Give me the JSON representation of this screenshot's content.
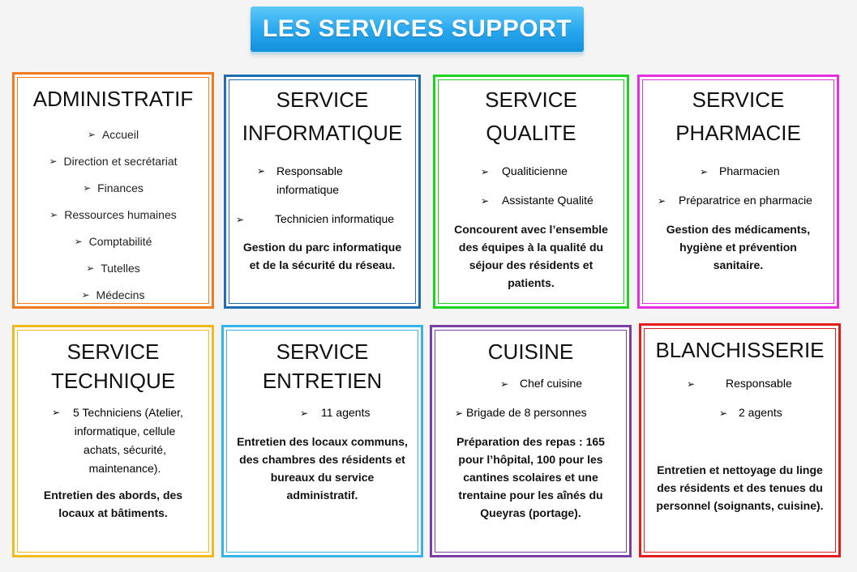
{
  "banner": {
    "title": "LES SERVICES SUPPORT"
  },
  "arrow": "➢",
  "colors": {
    "administratif": "#f07a1e",
    "informatique": "#1f6db0",
    "qualite": "#1fd21f",
    "pharmacie": "#e52fe0",
    "technique": "#f2b91c",
    "entretien": "#35b3e8",
    "cuisine": "#7a3fa5",
    "blanchisserie": "#e41b1b"
  },
  "cards": {
    "administratif": {
      "title": "ADMINISTRATIF",
      "items": [
        "Accueil",
        "Direction et secrétariat",
        "Finances",
        "Ressources humaines",
        "Comptabilité",
        "Tutelles",
        "Médecins"
      ]
    },
    "informatique": {
      "title1": "SERVICE",
      "title2": "INFORMATIQUE",
      "item1a": "Responsable",
      "item1b": "informatique",
      "item2": "Technicien informatique",
      "desc1": "Gestion du parc informatique",
      "desc2": "et de la sécurité du réseau."
    },
    "qualite": {
      "title1": "SERVICE",
      "title2": "QUALITE",
      "item1": "Qualiticienne",
      "item2": "Assistante Qualité",
      "desc": [
        "Concourent avec l’ensemble",
        "des équipes à la qualité du",
        "séjour des résidents et",
        "patients."
      ]
    },
    "pharmacie": {
      "title1": "SERVICE",
      "title2": "PHARMACIE",
      "item1": "Pharmacien",
      "item2": "Préparatrice en pharmacie",
      "desc": [
        "Gestion des médicaments,",
        "hygiène et prévention",
        "sanitaire."
      ]
    },
    "technique": {
      "title1": "SERVICE",
      "title2": "TECHNIQUE",
      "item": [
        "5 Techniciens (Atelier,",
        "informatique, cellule",
        "achats, sécurité,",
        "maintenance)."
      ],
      "desc": [
        "Entretien des abords, des",
        "locaux at bâtiments."
      ]
    },
    "entretien": {
      "title1": "SERVICE",
      "title2": "ENTRETIEN",
      "item": "11 agents",
      "desc": [
        "Entretien des locaux communs,",
        "des chambres des résidents et",
        "bureaux du service",
        "administratif."
      ]
    },
    "cuisine": {
      "title": "CUISINE",
      "item1": "Chef cuisine",
      "item2": "Brigade de 8 personnes",
      "desc": [
        "Préparation des repas : 165",
        "pour l’hôpital, 100 pour les",
        "cantines scolaires et une",
        "trentaine pour les aînés du",
        "Queyras (portage)."
      ]
    },
    "blanchisserie": {
      "title": "BLANCHISSERIE",
      "item1": "Responsable",
      "item2": "2 agents",
      "desc": [
        "Entretien et nettoyage du linge",
        "des résidents et des tenues du",
        "personnel (soignants, cuisine)."
      ]
    }
  }
}
